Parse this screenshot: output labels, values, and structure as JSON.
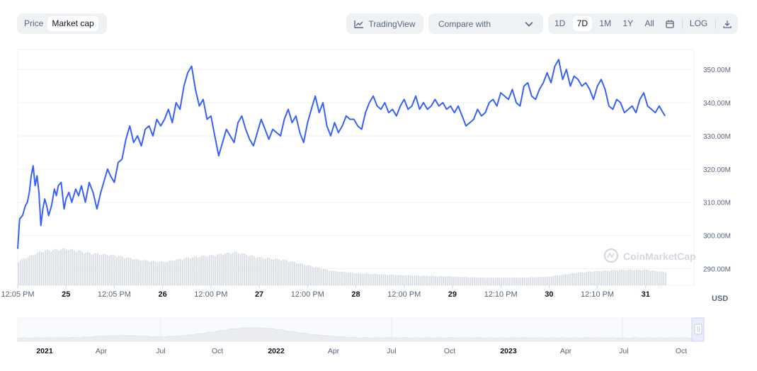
{
  "tabs": [
    {
      "label": "Price",
      "active": false
    },
    {
      "label": "Market cap",
      "active": true
    }
  ],
  "tradingview_label": "TradingView",
  "compare": {
    "label": "Compare with"
  },
  "ranges": [
    {
      "label": "1D",
      "active": false
    },
    {
      "label": "7D",
      "active": true
    },
    {
      "label": "1M",
      "active": false
    },
    {
      "label": "1Y",
      "active": false
    },
    {
      "label": "All",
      "active": false
    }
  ],
  "log_label": "LOG",
  "unit_label": "USD",
  "watermark": "CoinMarketCap",
  "colors": {
    "line": "#3861fb",
    "volume": "#d8dce3",
    "grid": "#eff2f5",
    "nav": "#c3cad6"
  },
  "chart_data": {
    "type": "line",
    "title": "",
    "ylabel": "USD",
    "ylim": [
      285,
      356
    ],
    "grid": true,
    "y_ticks": [
      "290.00M",
      "300.00M",
      "310.00M",
      "320.00M",
      "330.00M",
      "340.00M",
      "350.00M"
    ],
    "y_tick_values": [
      290,
      300,
      310,
      320,
      330,
      340,
      350
    ],
    "x_ticks": [
      {
        "label": "12:05 PM",
        "x": 0.0
      },
      {
        "label": "25",
        "x": 0.5
      },
      {
        "label": "12:05 PM",
        "x": 1.0
      },
      {
        "label": "26",
        "x": 1.5
      },
      {
        "label": "12:00 PM",
        "x": 2.0
      },
      {
        "label": "27",
        "x": 2.5
      },
      {
        "label": "12:00 PM",
        "x": 3.0
      },
      {
        "label": "28",
        "x": 3.5
      },
      {
        "label": "12:00 PM",
        "x": 4.0
      },
      {
        "label": "29",
        "x": 4.5
      },
      {
        "label": "12:10 PM",
        "x": 5.0
      },
      {
        "label": "30",
        "x": 5.5
      },
      {
        "label": "12:10 PM",
        "x": 6.0
      },
      {
        "label": "31",
        "x": 6.5
      }
    ],
    "xlim": [
      0,
      7
    ],
    "series": [
      {
        "values": [
          [
            0.0,
            296
          ],
          [
            0.02,
            305
          ],
          [
            0.05,
            306
          ],
          [
            0.08,
            309
          ],
          [
            0.1,
            310
          ],
          [
            0.12,
            313
          ],
          [
            0.14,
            318
          ],
          [
            0.16,
            321
          ],
          [
            0.18,
            315
          ],
          [
            0.2,
            318
          ],
          [
            0.22,
            313
          ],
          [
            0.24,
            303
          ],
          [
            0.26,
            308
          ],
          [
            0.28,
            311
          ],
          [
            0.3,
            309
          ],
          [
            0.32,
            306
          ],
          [
            0.35,
            309
          ],
          [
            0.38,
            314
          ],
          [
            0.4,
            312
          ],
          [
            0.42,
            315
          ],
          [
            0.45,
            316
          ],
          [
            0.48,
            308
          ],
          [
            0.5,
            311
          ],
          [
            0.53,
            313
          ],
          [
            0.56,
            310
          ],
          [
            0.6,
            314
          ],
          [
            0.63,
            312
          ],
          [
            0.66,
            315
          ],
          [
            0.7,
            310
          ],
          [
            0.74,
            316
          ],
          [
            0.78,
            313
          ],
          [
            0.82,
            308
          ],
          [
            0.86,
            313
          ],
          [
            0.9,
            317
          ],
          [
            0.93,
            320
          ],
          [
            0.96,
            318
          ],
          [
            1.0,
            316
          ],
          [
            1.04,
            322
          ],
          [
            1.08,
            323
          ],
          [
            1.12,
            329
          ],
          [
            1.16,
            333
          ],
          [
            1.2,
            328
          ],
          [
            1.24,
            330
          ],
          [
            1.28,
            327
          ],
          [
            1.32,
            332
          ],
          [
            1.36,
            333
          ],
          [
            1.4,
            330
          ],
          [
            1.44,
            335
          ],
          [
            1.48,
            333
          ],
          [
            1.52,
            335
          ],
          [
            1.56,
            338
          ],
          [
            1.6,
            334
          ],
          [
            1.64,
            340
          ],
          [
            1.68,
            338
          ],
          [
            1.72,
            345
          ],
          [
            1.76,
            349
          ],
          [
            1.8,
            351
          ],
          [
            1.84,
            344
          ],
          [
            1.88,
            339
          ],
          [
            1.92,
            341
          ],
          [
            1.96,
            335
          ],
          [
            2.0,
            336
          ],
          [
            2.04,
            330
          ],
          [
            2.08,
            324
          ],
          [
            2.12,
            328
          ],
          [
            2.16,
            332
          ],
          [
            2.2,
            330
          ],
          [
            2.24,
            328
          ],
          [
            2.28,
            334
          ],
          [
            2.32,
            336
          ],
          [
            2.36,
            332
          ],
          [
            2.4,
            329
          ],
          [
            2.44,
            327
          ],
          [
            2.48,
            331
          ],
          [
            2.52,
            335
          ],
          [
            2.56,
            332
          ],
          [
            2.6,
            329
          ],
          [
            2.64,
            332
          ],
          [
            2.68,
            331
          ],
          [
            2.72,
            330
          ],
          [
            2.76,
            335
          ],
          [
            2.8,
            338
          ],
          [
            2.84,
            334
          ],
          [
            2.88,
            336
          ],
          [
            2.92,
            331
          ],
          [
            2.96,
            328
          ],
          [
            3.0,
            334
          ],
          [
            3.04,
            338
          ],
          [
            3.08,
            342
          ],
          [
            3.12,
            337
          ],
          [
            3.16,
            340
          ],
          [
            3.2,
            333
          ],
          [
            3.24,
            330
          ],
          [
            3.28,
            334
          ],
          [
            3.32,
            331
          ],
          [
            3.36,
            333
          ],
          [
            3.4,
            336
          ],
          [
            3.44,
            335
          ],
          [
            3.48,
            335
          ],
          [
            3.52,
            333
          ],
          [
            3.56,
            332
          ],
          [
            3.6,
            337
          ],
          [
            3.64,
            340
          ],
          [
            3.68,
            342
          ],
          [
            3.72,
            339
          ],
          [
            3.76,
            338
          ],
          [
            3.8,
            340
          ],
          [
            3.84,
            337
          ],
          [
            3.88,
            338
          ],
          [
            3.92,
            336
          ],
          [
            3.96,
            339
          ],
          [
            4.0,
            341
          ],
          [
            4.04,
            338
          ],
          [
            4.08,
            339
          ],
          [
            4.12,
            342
          ],
          [
            4.16,
            338
          ],
          [
            4.2,
            340
          ],
          [
            4.24,
            338
          ],
          [
            4.28,
            339
          ],
          [
            4.32,
            341
          ],
          [
            4.36,
            339
          ],
          [
            4.4,
            340
          ],
          [
            4.44,
            338
          ],
          [
            4.48,
            339
          ],
          [
            4.52,
            337
          ],
          [
            4.56,
            339
          ],
          [
            4.6,
            336
          ],
          [
            4.64,
            333
          ],
          [
            4.68,
            334
          ],
          [
            4.72,
            335
          ],
          [
            4.76,
            338
          ],
          [
            4.8,
            336
          ],
          [
            4.84,
            337
          ],
          [
            4.88,
            340
          ],
          [
            4.92,
            341
          ],
          [
            4.96,
            339
          ],
          [
            5.0,
            343
          ],
          [
            5.04,
            342
          ],
          [
            5.08,
            341
          ],
          [
            5.12,
            344
          ],
          [
            5.16,
            340
          ],
          [
            5.2,
            339
          ],
          [
            5.24,
            345
          ],
          [
            5.28,
            346
          ],
          [
            5.32,
            342
          ],
          [
            5.36,
            341
          ],
          [
            5.4,
            344
          ],
          [
            5.44,
            346
          ],
          [
            5.48,
            349
          ],
          [
            5.52,
            346
          ],
          [
            5.56,
            351
          ],
          [
            5.6,
            353
          ],
          [
            5.64,
            347
          ],
          [
            5.68,
            350
          ],
          [
            5.72,
            345
          ],
          [
            5.76,
            348
          ],
          [
            5.8,
            347
          ],
          [
            5.84,
            345
          ],
          [
            5.88,
            346
          ],
          [
            5.92,
            344
          ],
          [
            5.96,
            341
          ],
          [
            6.0,
            345
          ],
          [
            6.04,
            347
          ],
          [
            6.08,
            344
          ],
          [
            6.12,
            339
          ],
          [
            6.16,
            338
          ],
          [
            6.2,
            341
          ],
          [
            6.24,
            340
          ],
          [
            6.28,
            337
          ],
          [
            6.32,
            338
          ],
          [
            6.36,
            339
          ],
          [
            6.4,
            337
          ],
          [
            6.44,
            341
          ],
          [
            6.48,
            343
          ],
          [
            6.52,
            339
          ],
          [
            6.56,
            338
          ],
          [
            6.6,
            337
          ],
          [
            6.64,
            339
          ],
          [
            6.68,
            337
          ],
          [
            6.7,
            336
          ]
        ]
      }
    ],
    "volume": {
      "values": [
        [
          0.0,
          0.44
        ],
        [
          0.25,
          0.62
        ],
        [
          0.5,
          0.66
        ],
        [
          0.75,
          0.58
        ],
        [
          1.0,
          0.54
        ],
        [
          1.25,
          0.46
        ],
        [
          1.5,
          0.42
        ],
        [
          1.75,
          0.5
        ],
        [
          2.0,
          0.54
        ],
        [
          2.25,
          0.6
        ],
        [
          2.5,
          0.5
        ],
        [
          2.75,
          0.46
        ],
        [
          3.0,
          0.36
        ],
        [
          3.25,
          0.26
        ],
        [
          3.5,
          0.22
        ],
        [
          3.75,
          0.2
        ],
        [
          4.0,
          0.18
        ],
        [
          4.25,
          0.17
        ],
        [
          4.5,
          0.16
        ],
        [
          4.75,
          0.14
        ],
        [
          5.0,
          0.14
        ],
        [
          5.25,
          0.14
        ],
        [
          5.5,
          0.16
        ],
        [
          5.75,
          0.22
        ],
        [
          6.0,
          0.26
        ],
        [
          6.25,
          0.28
        ],
        [
          6.5,
          0.28
        ],
        [
          6.7,
          0.24
        ]
      ]
    },
    "navigator": {
      "x_ticks": [
        "2021",
        "Apr",
        "Jul",
        "Oct",
        "2022",
        "Apr",
        "Jul",
        "Oct",
        "2023",
        "Apr",
        "Jul",
        "Oct"
      ]
    }
  }
}
